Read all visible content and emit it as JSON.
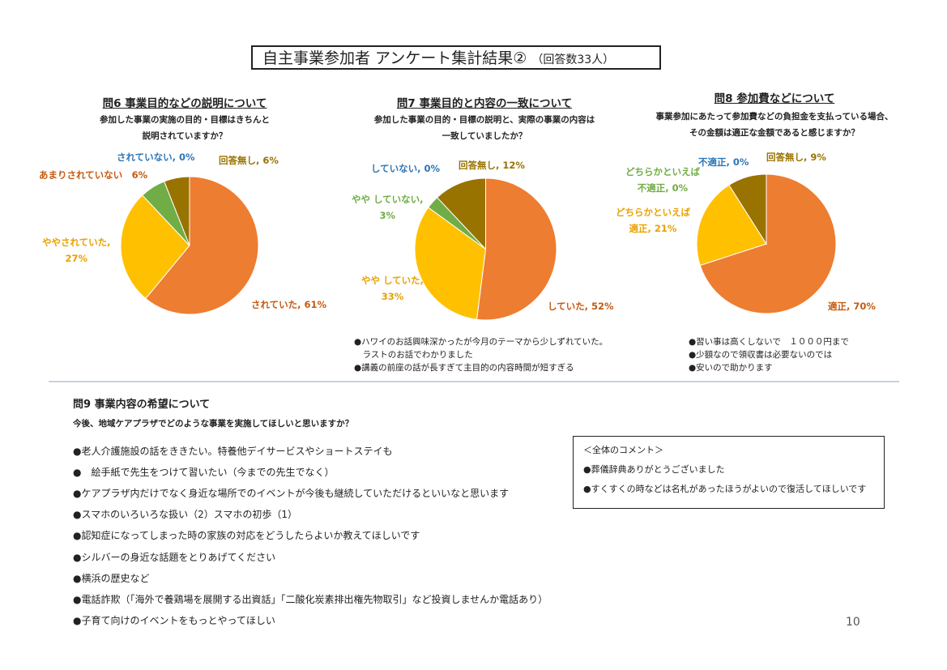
{
  "header": {
    "title": "自主事業参加者 アンケート集計結果②",
    "respondents": "（回答数33人）"
  },
  "colors": {
    "orange": "#ED7D31",
    "gold": "#FFC000",
    "green": "#70AD47",
    "olive": "#997300",
    "blue": "#2E75B6"
  },
  "chart_data": [
    {
      "type": "pie",
      "title": "問6 事業目的などの説明について",
      "question_lines": [
        "参加した事業の実施の目的・目標はきちんと",
        "説明されていますか？"
      ],
      "slices": [
        {
          "label": "されていた",
          "value": 61,
          "color": "#ED7D31",
          "label_color": "#C55A11",
          "label_text": "されていた, 61%"
        },
        {
          "label": "ややされていた",
          "value": 27,
          "color": "#FFC000",
          "label_color": "#E8A200",
          "label_lines": [
            "ややされていた,",
            "27%"
          ]
        },
        {
          "label": "あまりされていない",
          "value": 6,
          "color": "#70AD47",
          "label_color": "#C55A11",
          "label_text": "あまりされていない　6%"
        },
        {
          "label": "されていない",
          "value": 0,
          "color": "#2E75B6",
          "label_color": "#2E75B6",
          "label_text": "されていない, 0%"
        },
        {
          "label": "回答無し",
          "value": 6,
          "color": "#997300",
          "label_color": "#997300",
          "label_text": "回答無し, 6%"
        }
      ],
      "notes": []
    },
    {
      "type": "pie",
      "title": "問7 事業目的と内容の一致について",
      "question_lines": [
        "参加した事業の目的・目標の説明と、実際の事業の内容は",
        "一致していましたか？"
      ],
      "slices": [
        {
          "label": "していた",
          "value": 52,
          "color": "#ED7D31",
          "label_color": "#C55A11",
          "label_text": "していた, 52%"
        },
        {
          "label": "やや していた",
          "value": 33,
          "color": "#FFC000",
          "label_color": "#E8A200",
          "label_lines": [
            "やや していた,",
            "33%"
          ]
        },
        {
          "label": "やや していない",
          "value": 3,
          "color": "#70AD47",
          "label_color": "#70AD47",
          "label_lines": [
            "やや していない,",
            "3%"
          ]
        },
        {
          "label": "していない",
          "value": 0,
          "color": "#2E75B6",
          "label_color": "#2E75B6",
          "label_text": "していない, 0%"
        },
        {
          "label": "回答無し",
          "value": 12,
          "color": "#997300",
          "label_color": "#997300",
          "label_text": "回答無し, 12%"
        }
      ],
      "notes": [
        "●ハワイのお話興味深かったが今月のテーマから少しずれていた。",
        "　ラストのお話でわかりました",
        "●講義の前座の話が長すぎて主目的の内容時間が短すぎる"
      ]
    },
    {
      "type": "pie",
      "title": "問8 参加費などについて",
      "question_lines": [
        "事業参加にあたって参加費などの負担金を支払っている場合、",
        "その金額は適正な金額であると感じますか？"
      ],
      "slices": [
        {
          "label": "適正",
          "value": 70,
          "color": "#ED7D31",
          "label_color": "#C55A11",
          "label_text": "適正, 70%"
        },
        {
          "label": "どちらかといえば 適正",
          "value": 21,
          "color": "#FFC000",
          "label_color": "#E8A200",
          "label_lines": [
            "どちらかといえば",
            "適正, 21%"
          ]
        },
        {
          "label": "どちらかといえば 不適正",
          "value": 0,
          "color": "#70AD47",
          "label_color": "#70AD47",
          "label_lines": [
            "どちらかといえば",
            "不適正, 0%"
          ]
        },
        {
          "label": "不適正",
          "value": 0,
          "color": "#2E75B6",
          "label_color": "#2E75B6",
          "label_text": "不適正, 0%"
        },
        {
          "label": "回答無し",
          "value": 9,
          "color": "#997300",
          "label_color": "#997300",
          "label_text": "回答無し, 9%"
        }
      ],
      "notes": [
        "●習い事は高くしないで　１０００円まで",
        "●少額なので領収書は必要ないのでは",
        "●安いので助かります"
      ]
    }
  ],
  "q9": {
    "title": "問9 事業内容の希望について",
    "question": "今後、地域ケアプラザでどのような事業を実施してほしいと思いますか？",
    "items": [
      "●老人介護施設の話をききたい。特養他デイサービスやショートステイも",
      "●　絵手紙で先生をつけて習いたい（今までの先生でなく）",
      "●ケアプラザ内だけでなく身近な場所でのイベントが今後も継続していただけるといいなと思います",
      "●スマホのいろいろな扱い（2）スマホの初歩（1）",
      "●認知症になってしまった時の家族の対応をどうしたらよいか教えてほしいです",
      "●シルバーの身近な話題をとりあげてください",
      "●横浜の歴史など",
      "●電話詐欺（「海外で養鶏場を展開する出資話」「二酸化炭素排出権先物取引」など投資しませんか電話あり）",
      "●子育て向けのイベントをもっとやってほしい"
    ]
  },
  "comments": {
    "title": "＜全体のコメント＞",
    "items": [
      "●葬儀辞典ありがとうございました",
      "●すくすくの時などは名札があったほうがよいので復活してほしいです"
    ]
  },
  "page_number": "10"
}
